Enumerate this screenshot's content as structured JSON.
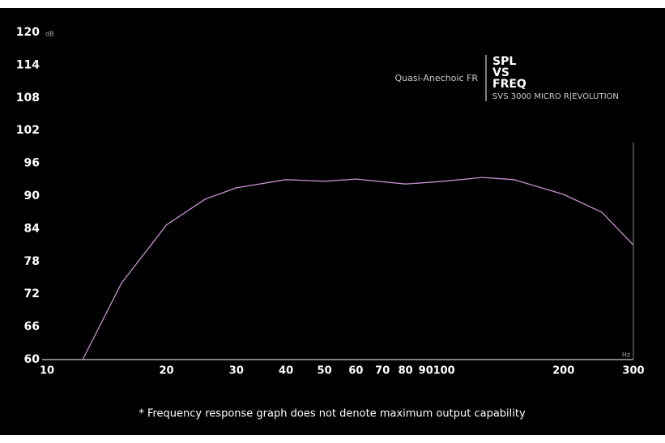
{
  "chart_data": {
    "type": "line",
    "title_lines": [
      "SPL",
      "VS",
      "FREQ"
    ],
    "subtitle": "SVS 3000 MICRO R|EVOLUTION",
    "label": "Quasi-Anechoic FR",
    "y_unit": "dB",
    "x_unit": "Hz",
    "footnote": "* Frequency response graph does not denote maximum output capability",
    "xscale": "log",
    "x": [
      12.3,
      15.4,
      20,
      25,
      30,
      40,
      50,
      60,
      80,
      100,
      125,
      150,
      200,
      250,
      300
    ],
    "series": [
      {
        "name": "Quasi-Anechoic FR",
        "color": "#c98fd3",
        "values": [
          60,
          74,
          84.7,
          89.4,
          91.5,
          93,
          92.7,
          93.1,
          92.2,
          92.7,
          93.4,
          93,
          90.3,
          87,
          81
        ]
      }
    ],
    "xlim": [
      10,
      300
    ],
    "xticks": [
      10,
      20,
      30,
      40,
      50,
      60,
      70,
      80,
      90,
      100,
      200,
      300
    ],
    "ylim": [
      60,
      120
    ],
    "yticks": [
      60,
      66,
      72,
      78,
      84,
      90,
      96,
      102,
      108,
      114,
      120
    ],
    "grid": false
  }
}
